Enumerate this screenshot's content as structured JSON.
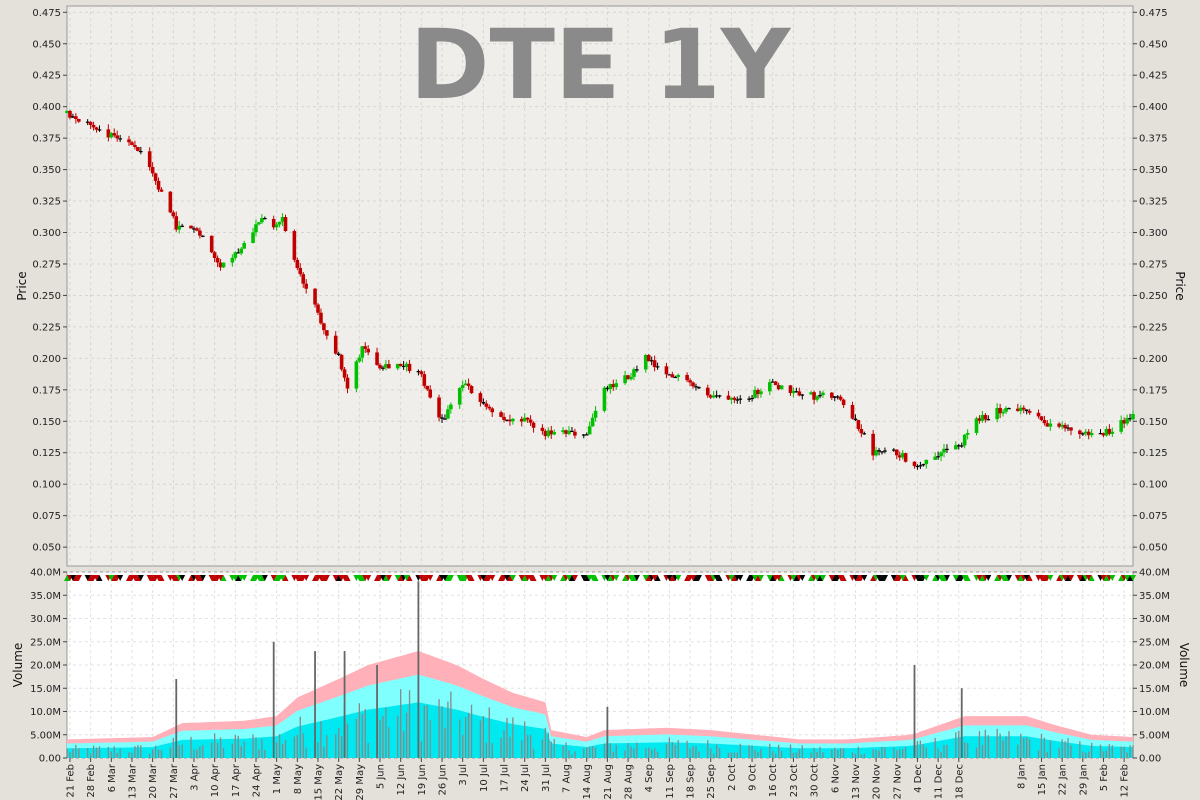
{
  "colors": {
    "up": "#00c000",
    "down": "#c00000",
    "flat": "#000000",
    "panel_bg": "#f0eeea",
    "volume_bg": "#ffffff",
    "band_pink": "#ffb0b8",
    "band_cyan_light": "#80ffff",
    "band_cyan": "#00e8f0",
    "volume_bar": "#888888"
  },
  "chart_data": [
    {
      "type": "candlestick",
      "title": "DTE 1Y",
      "ylabel": "Price",
      "ylim": [
        0.035,
        0.48
      ],
      "yticks": [
        "0.050",
        "0.075",
        "0.100",
        "0.125",
        "0.150",
        "0.175",
        "0.200",
        "0.225",
        "0.250",
        "0.275",
        "0.300",
        "0.325",
        "0.350",
        "0.375",
        "0.400",
        "0.425",
        "0.450",
        "0.475"
      ],
      "grid": true,
      "x_start": "2012-02-20",
      "x_end": "2013-02-15",
      "anchors": [
        [
          "2012-02-20",
          0.395
        ],
        [
          "2012-02-28",
          0.385
        ],
        [
          "2012-03-08",
          0.375
        ],
        [
          "2012-03-14",
          0.37
        ],
        [
          "2012-03-20",
          0.345
        ],
        [
          "2012-03-28",
          0.305
        ],
        [
          "2012-04-05",
          0.3
        ],
        [
          "2012-04-12",
          0.275
        ],
        [
          "2012-04-18",
          0.285
        ],
        [
          "2012-04-25",
          0.31
        ],
        [
          "2012-04-30",
          0.305
        ],
        [
          "2012-05-03",
          0.31
        ],
        [
          "2012-05-08",
          0.27
        ],
        [
          "2012-05-15",
          0.235
        ],
        [
          "2012-05-22",
          0.2
        ],
        [
          "2012-05-25",
          0.175
        ],
        [
          "2012-05-30",
          0.21
        ],
        [
          "2012-06-05",
          0.195
        ],
        [
          "2012-06-12",
          0.195
        ],
        [
          "2012-06-18",
          0.19
        ],
        [
          "2012-06-26",
          0.15
        ],
        [
          "2012-07-03",
          0.18
        ],
        [
          "2012-07-10",
          0.165
        ],
        [
          "2012-07-17",
          0.15
        ],
        [
          "2012-07-24",
          0.15
        ],
        [
          "2012-07-31",
          0.14
        ],
        [
          "2012-08-07",
          0.14
        ],
        [
          "2012-08-14",
          0.14
        ],
        [
          "2012-08-20",
          0.175
        ],
        [
          "2012-08-28",
          0.185
        ],
        [
          "2012-09-03",
          0.2
        ],
        [
          "2012-09-10",
          0.185
        ],
        [
          "2012-09-17",
          0.185
        ],
        [
          "2012-09-24",
          0.17
        ],
        [
          "2012-10-01",
          0.17
        ],
        [
          "2012-10-08",
          0.17
        ],
        [
          "2012-10-15",
          0.18
        ],
        [
          "2012-10-22",
          0.175
        ],
        [
          "2012-10-30",
          0.17
        ],
        [
          "2012-11-06",
          0.17
        ],
        [
          "2012-11-13",
          0.15
        ],
        [
          "2012-11-19",
          0.125
        ],
        [
          "2012-11-27",
          0.125
        ],
        [
          "2012-12-04",
          0.115
        ],
        [
          "2012-12-11",
          0.125
        ],
        [
          "2012-12-18",
          0.13
        ],
        [
          "2012-12-24",
          0.15
        ],
        [
          "2013-01-02",
          0.16
        ],
        [
          "2013-01-08",
          0.16
        ],
        [
          "2013-01-15",
          0.15
        ],
        [
          "2013-01-22",
          0.145
        ],
        [
          "2013-01-29",
          0.14
        ],
        [
          "2013-02-05",
          0.14
        ],
        [
          "2013-02-15",
          0.155
        ]
      ],
      "xticks": [
        "21 Feb",
        "28 Feb",
        "6 Mar",
        "13 Mar",
        "20 Mar",
        "27 Mar",
        "3 Apr",
        "10 Apr",
        "17 Apr",
        "24 Apr",
        "1 May",
        "8 May",
        "15 May",
        "22 May",
        "29 May",
        "5 Jun",
        "12 Jun",
        "19 Jun",
        "26 Jun",
        "3 Jul",
        "10 Jul",
        "17 Jul",
        "24 Jul",
        "31 Jul",
        "7 Aug",
        "14 Aug",
        "21 Aug",
        "28 Aug",
        "4 Sep",
        "11 Sep",
        "18 Sep",
        "25 Sep",
        "2 Oct",
        "9 Oct",
        "16 Oct",
        "23 Oct",
        "30 Oct",
        "6 Nov",
        "13 Nov",
        "20 Nov",
        "27 Nov",
        "4 Dec",
        "11 Dec",
        "18 Dec",
        "8 Jan",
        "15 Jan",
        "22 Jan",
        "29 Jan",
        "5 Feb",
        "12 Feb"
      ],
      "xtick_dates": [
        "2012-02-21",
        "2012-02-28",
        "2012-03-06",
        "2012-03-13",
        "2012-03-20",
        "2012-03-27",
        "2012-04-03",
        "2012-04-10",
        "2012-04-17",
        "2012-04-24",
        "2012-05-01",
        "2012-05-08",
        "2012-05-15",
        "2012-05-22",
        "2012-05-29",
        "2012-06-05",
        "2012-06-12",
        "2012-06-19",
        "2012-06-26",
        "2012-07-03",
        "2012-07-10",
        "2012-07-17",
        "2012-07-24",
        "2012-07-31",
        "2012-08-07",
        "2012-08-14",
        "2012-08-21",
        "2012-08-28",
        "2012-09-04",
        "2012-09-11",
        "2012-09-18",
        "2012-09-25",
        "2012-10-02",
        "2012-10-09",
        "2012-10-16",
        "2012-10-23",
        "2012-10-30",
        "2012-11-06",
        "2012-11-13",
        "2012-11-20",
        "2012-11-27",
        "2012-12-04",
        "2012-12-11",
        "2012-12-18",
        "2013-01-08",
        "2013-01-15",
        "2013-01-22",
        "2013-01-29",
        "2013-02-05",
        "2013-02-12"
      ]
    },
    {
      "type": "bar",
      "ylabel": "Volume",
      "ylim": [
        0,
        40
      ],
      "yticks": [
        "0.00",
        "5.00M",
        "10.0M",
        "15.0M",
        "20.0M",
        "25.0M",
        "30.0M",
        "35.0M",
        "40.0M"
      ],
      "band_anchors": [
        [
          "2012-02-20",
          4
        ],
        [
          "2012-03-20",
          4.5
        ],
        [
          "2012-03-30",
          7.5
        ],
        [
          "2012-04-20",
          8
        ],
        [
          "2012-05-01",
          9
        ],
        [
          "2012-05-08",
          13
        ],
        [
          "2012-05-22",
          17
        ],
        [
          "2012-06-01",
          20
        ],
        [
          "2012-06-18",
          23
        ],
        [
          "2012-07-01",
          20
        ],
        [
          "2012-07-10",
          17
        ],
        [
          "2012-07-20",
          14
        ],
        [
          "2012-07-31",
          12
        ],
        [
          "2012-08-02",
          6
        ],
        [
          "2012-08-14",
          4.5
        ],
        [
          "2012-08-20",
          6
        ],
        [
          "2012-09-10",
          6.5
        ],
        [
          "2012-09-25",
          6
        ],
        [
          "2012-10-10",
          5
        ],
        [
          "2012-10-25",
          4
        ],
        [
          "2012-11-10",
          4
        ],
        [
          "2012-12-02",
          5
        ],
        [
          "2012-12-11",
          7
        ],
        [
          "2012-12-20",
          9
        ],
        [
          "2013-01-10",
          9
        ],
        [
          "2013-01-20",
          7
        ],
        [
          "2013-02-01",
          5
        ],
        [
          "2013-02-15",
          4.5
        ]
      ],
      "spikes": [
        [
          "2012-03-28",
          17
        ],
        [
          "2012-04-30",
          25
        ],
        [
          "2012-05-14",
          23
        ],
        [
          "2012-05-24",
          23
        ],
        [
          "2012-06-04",
          20
        ],
        [
          "2012-06-18",
          38
        ],
        [
          "2012-08-21",
          11
        ],
        [
          "2012-12-03",
          20
        ],
        [
          "2012-12-19",
          15
        ]
      ]
    }
  ]
}
